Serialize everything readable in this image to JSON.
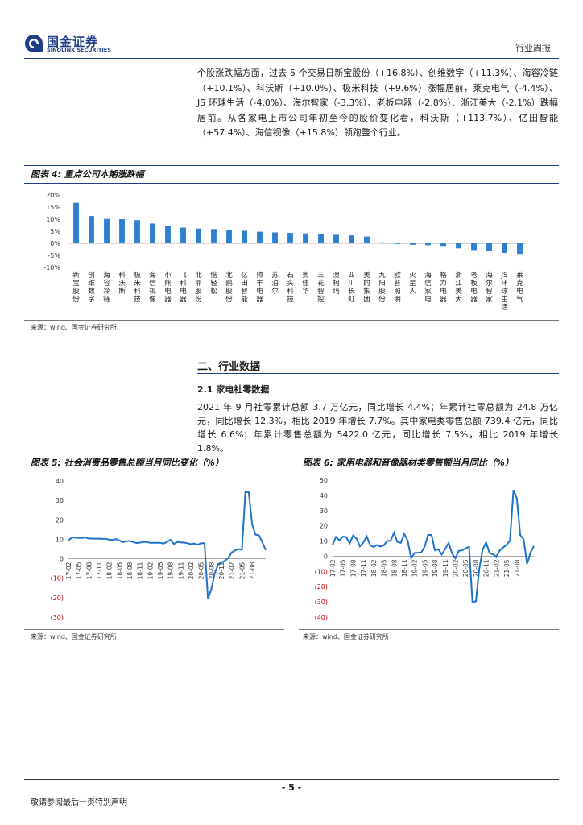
{
  "header": {
    "logo_cn": "国金证券",
    "logo_en": "SINOLINK SECURITIES",
    "report_type": "行业周报"
  },
  "intro_paragraph": "个股涨跌幅方面，过去 5 个交易日新宝股份（+16.8%）、创维数字（+11.3%）、海容冷链（+10.1%）、科沃斯（+10.0%）、极米科技（+9.6%）涨幅居前，莱克电气（-4.4%）、JS 环球生活（-4.0%）、海尔智家（-3.3%）、老板电器（-2.8%）、浙江美大（-2.1%）跌幅居前。从各家电上市公司年初至今的股价变化看，科沃斯（+113.7%）、亿田智能（+57.4%）、海信视像（+15.8%）领跑整个行业。",
  "figure4": {
    "title": "图表 4:  重点公司本期涨跌幅",
    "source": "来源：wind、国金证券研究所"
  },
  "section2": {
    "heading": "二、行业数据",
    "sub_heading": "2.1 家电社零数据",
    "paragraph": "2021 年 9 月社零累计总额 3.7 万亿元，同比增长 4.4%；年累计社零总额为 24.8 万亿元，同比增长 12.3%，相比 2019 年增长 7.7%。其中家电类零售总额 739.4 亿元，同比增长 6.6%；年累计零售总额为 5422.0 亿元，同比增长 7.5%，相比 2019 年增长 1.8%。"
  },
  "figure5": {
    "title": "图表 5:  社会消费品零售总额当月同比变化（%）",
    "source": "来源：wind、国金证券研究所"
  },
  "figure6": {
    "title": "图表 6:  家用电器和音像器材类零售额当月同比（%）",
    "source": "来源：wind、国金证券研究所"
  },
  "footer": {
    "page_number": "- 5 -",
    "disclaimer": "敬请参阅最后一页特别声明"
  },
  "colors": {
    "accent": "#1f3c88",
    "bar": "#2f7fd1",
    "line": "#1e73c8",
    "negative_tick": "#c00000"
  },
  "chart_data": [
    {
      "type": "bar",
      "y_ticks": [
        "20%",
        "15%",
        "10%",
        "5%",
        "0%",
        "-5%",
        "-10%"
      ],
      "ylim": [
        -10,
        20
      ],
      "grid": false,
      "categories": [
        "新宝股份",
        "创维数字",
        "海容冷链",
        "科沃斯",
        "极米科技",
        "海信视像",
        "小熊电器",
        "飞科电器",
        "北鼎股份",
        "倍轻松",
        "北鸥股份",
        "亿田智能",
        "帅丰电器",
        "苏泊尔",
        "石头科技",
        "奥佳华",
        "三花智控",
        "澳柯玛",
        "四川长虹",
        "美的集团",
        "九阳股份",
        "欧普照明",
        "火星人",
        "海信家电",
        "格力电器",
        "浙江美大",
        "老板电器",
        "海尔智家",
        "JS环球生活",
        "莱克电气"
      ],
      "values": [
        16.8,
        11.3,
        10.1,
        10.0,
        9.6,
        8.2,
        7.3,
        6.5,
        6.1,
        5.9,
        5.6,
        5.2,
        4.8,
        4.5,
        4.3,
        4.1,
        3.7,
        3.5,
        3.3,
        2.8,
        0.4,
        -0.3,
        -0.6,
        -0.8,
        -1.1,
        -2.1,
        -2.8,
        -3.3,
        -4.0,
        -4.4
      ]
    },
    {
      "type": "line",
      "x_ticks": [
        "17-02",
        "17-05",
        "17-08",
        "17-11",
        "18-02",
        "18-05",
        "18-08",
        "18-11",
        "19-02",
        "19-05",
        "19-08",
        "19-11",
        "20-02",
        "20-05",
        "20-08",
        "20-11",
        "21-02",
        "21-05",
        "21-08"
      ],
      "y_ticks": [
        "40",
        "30",
        "20",
        "10",
        "0",
        "(10)",
        "(20)",
        "(30)"
      ],
      "ylim": [
        -30,
        40
      ],
      "series": [
        {
          "values": [
            9.5,
            10.9,
            10.9,
            10.7,
            10.7,
            11.0,
            10.4,
            10.4,
            10.3,
            10.4,
            10.2,
            10.3,
            9.8,
            9.7,
            10.1,
            9.4,
            8.5,
            9.0,
            9.2,
            8.6,
            8.1,
            8.3,
            8.6,
            8.6,
            8.2,
            8.2,
            8.2,
            8.2,
            7.8,
            8.7,
            9.8,
            7.6,
            8.6,
            8.4,
            8.3,
            8.0,
            7.5,
            7.8,
            7.2,
            8.0,
            8.0,
            -20.5,
            -15.8,
            -7.5,
            -2.8,
            -1.8,
            -1.1,
            0.5,
            3.3,
            4.3,
            5.0,
            4.6,
            34.2,
            34.2,
            17.7,
            12.4,
            12.1,
            8.5,
            4.4
          ]
        }
      ]
    },
    {
      "type": "line",
      "x_ticks": [
        "17-02",
        "17-05",
        "17-08",
        "17-11",
        "18-02",
        "18-05",
        "18-08",
        "18-11",
        "19-02",
        "19-05",
        "19-08",
        "19-11",
        "20-02",
        "20-05",
        "20-08",
        "20-11",
        "21-02",
        "21-05",
        "21-08"
      ],
      "y_ticks": [
        "50",
        "40",
        "30",
        "20",
        "10",
        "0",
        "(10)",
        "(20)",
        "(30)",
        "(40)"
      ],
      "ylim": [
        -40,
        50
      ],
      "series": [
        {
          "values": [
            7.5,
            12.7,
            10.4,
            12.9,
            12.6,
            8.5,
            13.6,
            11.7,
            6.5,
            8.9,
            13.0,
            7.3,
            6.1,
            7.4,
            6.4,
            7.1,
            10.1,
            10.1,
            15.5,
            9.4,
            8.8,
            14.7,
            10.3,
            -1.1,
            2.1,
            2.3,
            2.5,
            6.3,
            14.0,
            14.0,
            3.9,
            4.6,
            1.1,
            4.8,
            8.7,
            2.0,
            -1.4,
            3.5,
            3.9,
            5.2,
            6.2,
            -30.0,
            -29.7,
            -8.2,
            4.3,
            9.1,
            2.1,
            1.2,
            -0.2,
            3.8,
            5.7,
            7.6,
            10.2,
            43.5,
            38.1,
            13.9,
            11.0,
            -5.0,
            2.4,
            6.6
          ]
        }
      ]
    }
  ]
}
